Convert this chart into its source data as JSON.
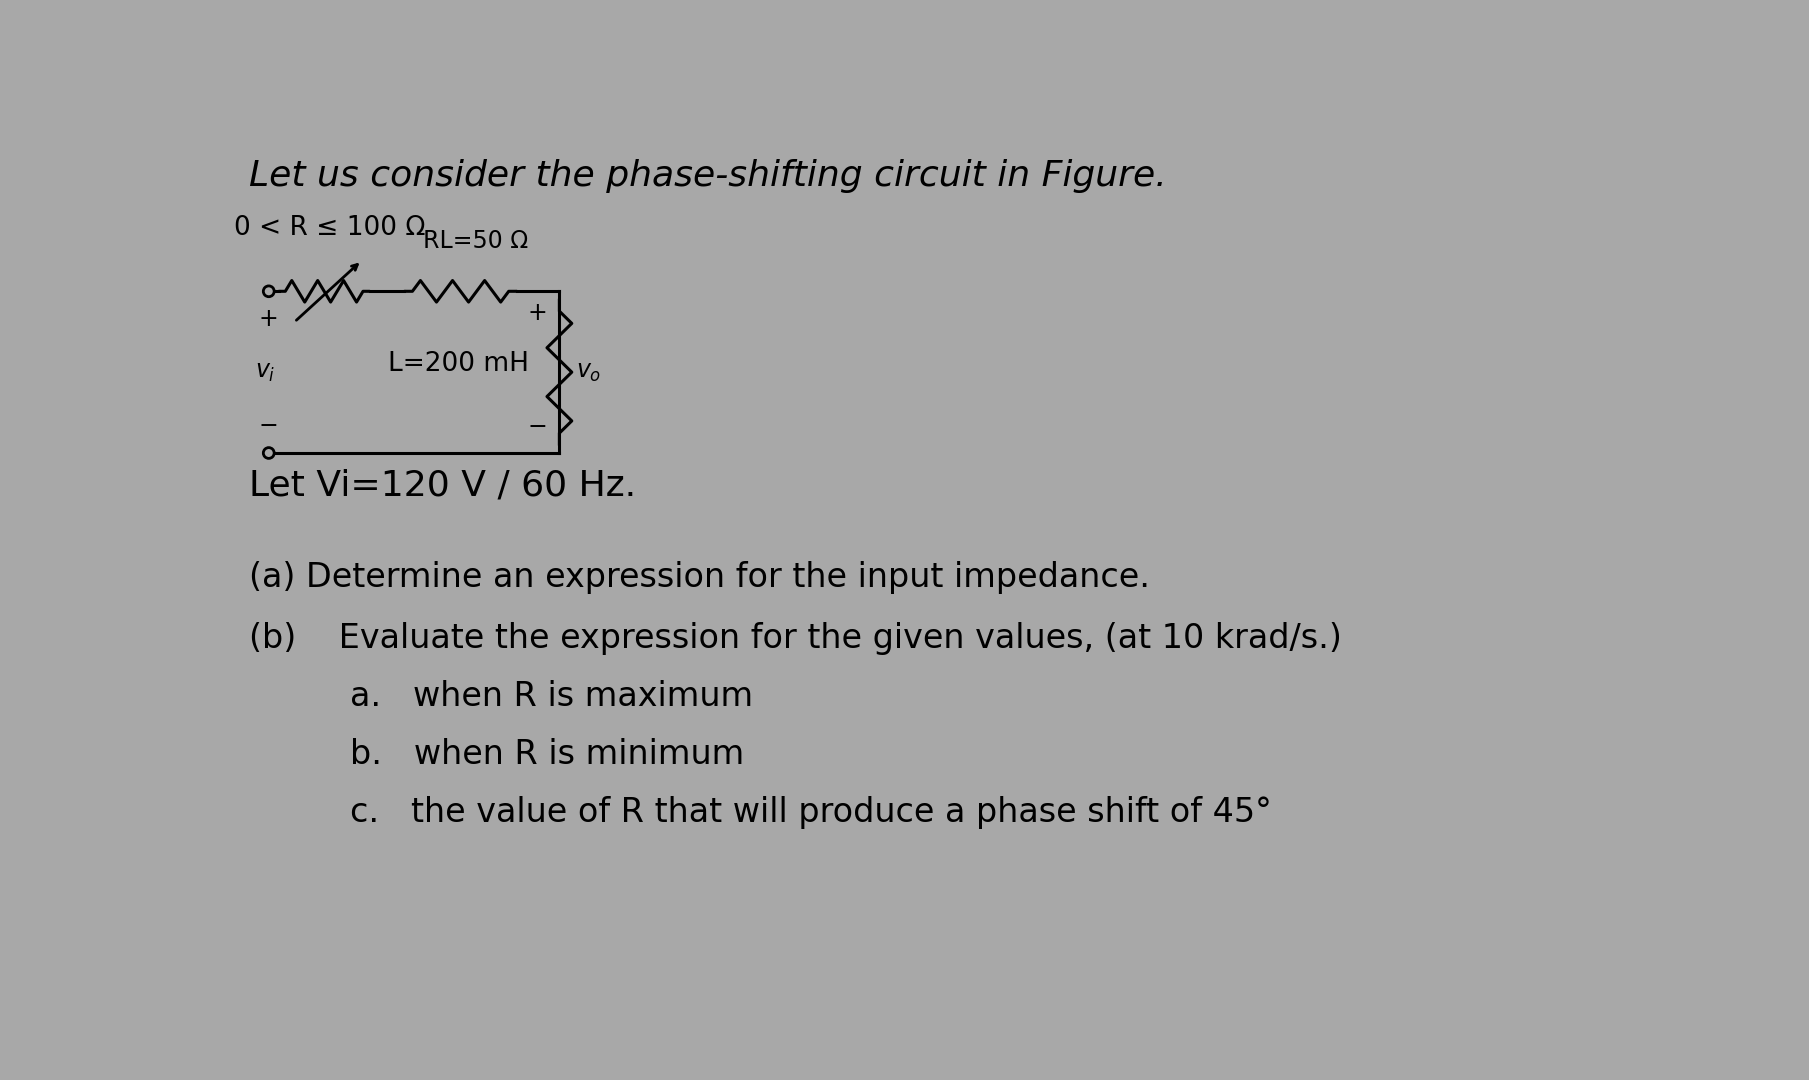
{
  "bg_color": "#a8a8a8",
  "title_line": "Let us consider the phase-shifting circuit in Figure.",
  "circuit_label_R": "0 < R ≤ 100 Ω",
  "circuit_label_RL": "RL=50 Ω",
  "circuit_label_L": "L=200 mH",
  "circuit_label_Vi": "Let Vi=120 V / 60 Hz.",
  "part_a": "(a) Determine an expression for the input impedance.",
  "part_b": "(b)    Evaluate the expression for the given values, (at 10 krad/s.)",
  "sub_a": "a.   when R is maximum",
  "sub_b": "b.   when R is minimum",
  "sub_c": "c.   the value of R that will produce a phase shift of 45°",
  "title_fontsize": 26,
  "body_fontsize": 24,
  "circuit_fontsize": 19,
  "small_fontsize": 17
}
